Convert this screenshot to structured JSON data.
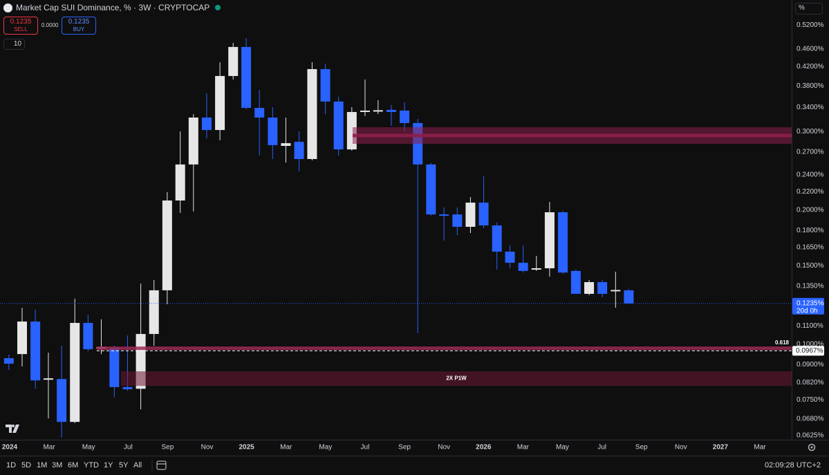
{
  "chart_data": {
    "type": "candlestick",
    "title": "Market Cap SUI Dominance, % · 3W · CRYPTOCAP",
    "up_color": "#e6e6e6",
    "down_color": "#2962ff",
    "log_scale": true,
    "grid": false,
    "x": [
      -0.04,
      0.63,
      1.3,
      1.96,
      2.63,
      3.3,
      3.97,
      4.64,
      5.3,
      5.97,
      6.64,
      7.31,
      7.98,
      8.64,
      9.31,
      9.98,
      10.65,
      11.32,
      11.98,
      12.65,
      13.32,
      13.99,
      14.66,
      15.32,
      15.99,
      16.66,
      17.33,
      18.0,
      18.66,
      19.33,
      20.0,
      20.67,
      21.34,
      22.0,
      22.67,
      23.34,
      24.01,
      24.68,
      25.34,
      26.01,
      26.68,
      27.35,
      28.02,
      28.68,
      29.35,
      30.02,
      30.69,
      31.36
    ],
    "open": [
      0.0931,
      0.0951,
      0.1125,
      0.0836,
      0.0836,
      0.067,
      0.1117,
      0.0982,
      0.0982,
      0.0802,
      0.0795,
      0.1055,
      0.1322,
      0.2102,
      0.2532,
      0.3226,
      0.3025,
      0.3998,
      0.4645,
      0.3391,
      0.3226,
      0.2787,
      0.2846,
      0.2604,
      0.4143,
      0.3504,
      0.2737,
      0.332,
      0.3333,
      0.3357,
      0.3344,
      0.3136,
      0.2532,
      0.1956,
      0.1956,
      0.1835,
      0.2079,
      0.1848,
      0.1614,
      0.1524,
      0.1471,
      0.1481,
      0.1978,
      0.1461,
      0.1298,
      0.1379,
      0.1317,
      0.1322
    ],
    "high": [
      0.0948,
      0.1208,
      0.1196,
      0.0958,
      0.0993,
      0.1266,
      0.1166,
      0.1138,
      0.0993,
      0.1047,
      0.1369,
      0.1394,
      0.2195,
      0.3004,
      0.3284,
      0.3655,
      0.4293,
      0.4745,
      0.4865,
      0.3721,
      0.3404,
      0.3226,
      0.3004,
      0.4293,
      0.4263,
      0.3593,
      0.3404,
      0.3927,
      0.3529,
      0.3442,
      0.349,
      0.3203,
      0.255,
      0.2028,
      0.2028,
      0.214,
      0.2382,
      0.1876,
      0.1667,
      0.1667,
      0.1579,
      0.2087,
      0.1992,
      0.1471,
      0.1394,
      0.1394,
      0.1455,
      0.1331
    ],
    "low": [
      0.0876,
      0.0892,
      0.0795,
      0.0682,
      0.0618,
      0.0666,
      0.0965,
      0.0951,
      0.076,
      0.0787,
      0.0715,
      0.0993,
      0.123,
      0.1972,
      0.1986,
      0.2898,
      0.2869,
      0.3927,
      0.3367,
      0.2651,
      0.2604,
      0.2557,
      0.2442,
      0.2586,
      0.3284,
      0.2651,
      0.2718,
      0.3251,
      0.3284,
      0.3092,
      0.3004,
      0.1059,
      0.1943,
      0.1709,
      0.1758,
      0.1777,
      0.1822,
      0.1471,
      0.1481,
      0.1449,
      0.1461,
      0.1419,
      0.1439,
      0.1298,
      0.1289,
      0.1275,
      0.1208,
      0.1239
    ],
    "close": [
      0.0905,
      0.1125,
      0.083,
      0.0836,
      0.067,
      0.1117,
      0.0975,
      0.0982,
      0.0802,
      0.0793,
      0.1055,
      0.1322,
      0.2102,
      0.2532,
      0.3226,
      0.3025,
      0.3998,
      0.4645,
      0.3391,
      0.3226,
      0.2798,
      0.2826,
      0.2604,
      0.4143,
      0.3504,
      0.2737,
      0.332,
      0.3344,
      0.3344,
      0.332,
      0.3136,
      0.2532,
      0.1956,
      0.1943,
      0.1835,
      0.2079,
      0.1848,
      0.1614,
      0.1524,
      0.1461,
      0.1481,
      0.1978,
      0.1449,
      0.1298,
      0.1379,
      0.1298,
      0.1322,
      0.1235
    ],
    "xlim": [
      -0.49,
      39.61
    ],
    "xticks": [
      {
        "value": 0,
        "label": "2024"
      },
      {
        "value": 2,
        "label": "Mar"
      },
      {
        "value": 4,
        "label": "May"
      },
      {
        "value": 6,
        "label": "Jul"
      },
      {
        "value": 8,
        "label": "Sep"
      },
      {
        "value": 10,
        "label": "Nov"
      },
      {
        "value": 12,
        "label": "2025"
      },
      {
        "value": 14,
        "label": "Mar"
      },
      {
        "value": 16,
        "label": "May"
      },
      {
        "value": 18,
        "label": "Jul"
      },
      {
        "value": 20,
        "label": "Sep"
      },
      {
        "value": 22,
        "label": "Nov"
      },
      {
        "value": 24,
        "label": "2026"
      },
      {
        "value": 26,
        "label": "Mar"
      },
      {
        "value": 28,
        "label": "May"
      },
      {
        "value": 30,
        "label": "Jul"
      },
      {
        "value": 32,
        "label": "Sep"
      },
      {
        "value": 34,
        "label": "Nov"
      },
      {
        "value": 36,
        "label": "2027"
      },
      {
        "value": 38,
        "label": "Mar"
      }
    ],
    "ylim": [
      0.0611,
      0.592
    ],
    "yticks": [
      {
        "value": 0.52,
        "label": "0.5200%"
      },
      {
        "value": 0.46,
        "label": "0.4600%"
      },
      {
        "value": 0.42,
        "label": "0.4200%"
      },
      {
        "value": 0.38,
        "label": "0.3800%"
      },
      {
        "value": 0.34,
        "label": "0.3400%"
      },
      {
        "value": 0.3,
        "label": "0.3000%"
      },
      {
        "value": 0.27,
        "label": "0.2700%"
      },
      {
        "value": 0.24,
        "label": "0.2400%"
      },
      {
        "value": 0.22,
        "label": "0.2200%"
      },
      {
        "value": 0.2,
        "label": "0.2000%"
      },
      {
        "value": 0.18,
        "label": "0.1800%"
      },
      {
        "value": 0.165,
        "label": "0.1650%"
      },
      {
        "value": 0.15,
        "label": "0.1500%"
      },
      {
        "value": 0.135,
        "label": "0.1350%"
      },
      {
        "value": 0.11,
        "label": "0.1100%"
      },
      {
        "value": 0.1,
        "label": "0.1000%"
      },
      {
        "value": 0.09,
        "label": "0.0900%"
      },
      {
        "value": 0.082,
        "label": "0.0820%"
      },
      {
        "value": 0.075,
        "label": "0.0750%"
      },
      {
        "value": 0.068,
        "label": "0.0680%"
      },
      {
        "value": 0.0625,
        "label": "0.0625%"
      }
    ],
    "zones": [
      {
        "top": 0.3069,
        "bottom": 0.2817,
        "start": 17.37,
        "color": "#8c1f4a"
      },
      {
        "top": 0.087,
        "bottom": 0.0807,
        "start": 5.64,
        "color": "#6e1a35",
        "label": "2X P1W"
      }
    ],
    "price_lines": [
      {
        "value": 0.098,
        "start": 4.41,
        "color": "#9c2a55",
        "label": "0.618"
      },
      {
        "value": 0.0967,
        "start": 4.41,
        "color": "#ffffff",
        "label": "0.0967%"
      }
    ],
    "last": {
      "value": 0.1235,
      "label": "0.1235%",
      "countdown": "20d 0h",
      "color": "#2962ff"
    }
  },
  "toolbar": {
    "sell_price": "0.1235",
    "sell": "SELL",
    "spread": "0.0000",
    "buy_price": "0.1235",
    "buy": "BUY",
    "indicators": "10",
    "scale_mode": "%"
  },
  "footer": {
    "ranges": [
      "1D",
      "5D",
      "1M",
      "3M",
      "6M",
      "YTD",
      "1Y",
      "5Y",
      "All"
    ],
    "clock": "02:09:28 UTC+2"
  }
}
